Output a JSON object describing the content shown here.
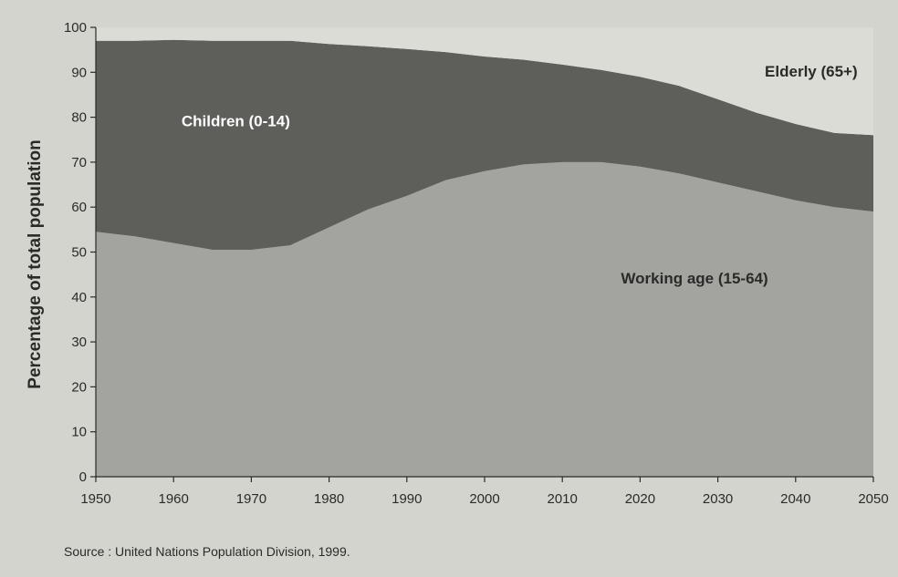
{
  "chart_data": {
    "type": "area",
    "stacked": true,
    "xlabel": "",
    "ylabel": "Percentage of total population",
    "xlim": [
      1950,
      2050
    ],
    "ylim": [
      0,
      100
    ],
    "x_ticks": [
      1950,
      1960,
      1970,
      1980,
      1990,
      2000,
      2010,
      2020,
      2030,
      2040,
      2050
    ],
    "y_ticks": [
      0,
      10,
      20,
      30,
      40,
      50,
      60,
      70,
      80,
      90,
      100
    ],
    "grid": false,
    "x": [
      1950,
      1955,
      1960,
      1965,
      1970,
      1975,
      1980,
      1985,
      1990,
      1995,
      2000,
      2005,
      2010,
      2015,
      2020,
      2025,
      2030,
      2035,
      2040,
      2045,
      2050
    ],
    "series": [
      {
        "name": "Working age (15-64)",
        "color": "#a3a39f",
        "values": [
          54.5,
          53.5,
          52,
          50.5,
          50.5,
          51.5,
          55.5,
          59.5,
          62.5,
          66,
          68,
          69.5,
          70,
          70,
          69,
          67.5,
          65.5,
          63.5,
          61.5,
          60,
          59
        ]
      },
      {
        "name": "Children (0-14)",
        "color": "#5e5e5b",
        "values": [
          42.5,
          43.5,
          45.2,
          46.5,
          46.5,
          45.5,
          40.8,
          36.3,
          32.7,
          28.5,
          25.5,
          23.3,
          21.7,
          20.5,
          20,
          19.5,
          18.5,
          17.5,
          17,
          16.5,
          17
        ]
      },
      {
        "name": "Elderly (65+)",
        "color": "#dcdcd7",
        "values": [
          3,
          3,
          2.8,
          3,
          3,
          3,
          3.7,
          4.2,
          4.8,
          5.5,
          6.5,
          7.2,
          8.3,
          9.5,
          11,
          13,
          16,
          19,
          21.5,
          23.5,
          24
        ]
      }
    ],
    "series_labels": [
      {
        "text": "Children (0-14)",
        "x": 1968,
        "y": 78,
        "color": "#ffffff"
      },
      {
        "text": "Working age (15-64)",
        "x": 2027,
        "y": 43,
        "color": "#2a2a28"
      },
      {
        "text": "Elderly (65+)",
        "x": 2042,
        "y": 89,
        "color": "#2a2a28"
      }
    ],
    "source": "Source : United Nations Population Division, 1999."
  }
}
